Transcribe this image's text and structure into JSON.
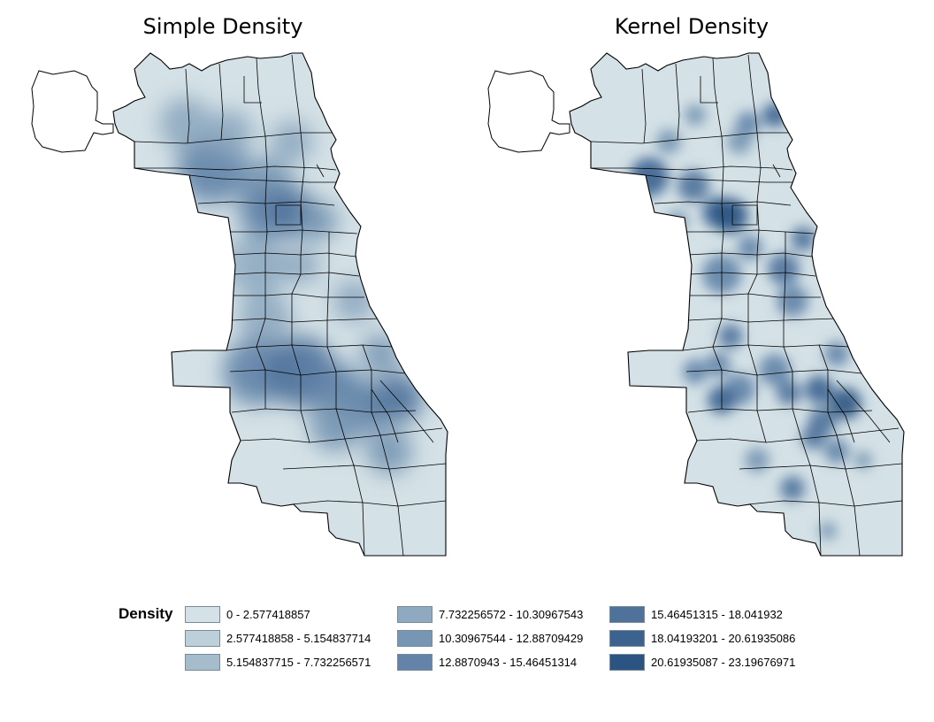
{
  "maps": [
    {
      "title": "Simple Density",
      "method": "simple"
    },
    {
      "title": "Kernel Density",
      "method": "kernel"
    }
  ],
  "legend": {
    "title": "Density",
    "classes": [
      {
        "label": "0 - 2.577418857",
        "color": "#d4e1e6"
      },
      {
        "label": "2.577418858 - 5.154837714",
        "color": "#bdcfd9"
      },
      {
        "label": "5.154837715 - 7.732256571",
        "color": "#a5bccd"
      },
      {
        "label": "7.732256572 - 10.30967543",
        "color": "#8ea9c0"
      },
      {
        "label": "10.30967544 - 12.88709429",
        "color": "#7796b3"
      },
      {
        "label": "12.8870943 - 15.46451314",
        "color": "#6384a8"
      },
      {
        "label": "15.46451315 - 18.041932",
        "color": "#4f729b"
      },
      {
        "label": "18.04193201 - 20.61935086",
        "color": "#3c6290"
      },
      {
        "label": "20.61935087 - 23.19676971",
        "color": "#2b5482"
      }
    ]
  },
  "colors": {
    "background": "#ffffff",
    "boundary": "#000000",
    "ohare_fill": "#ffffff"
  }
}
